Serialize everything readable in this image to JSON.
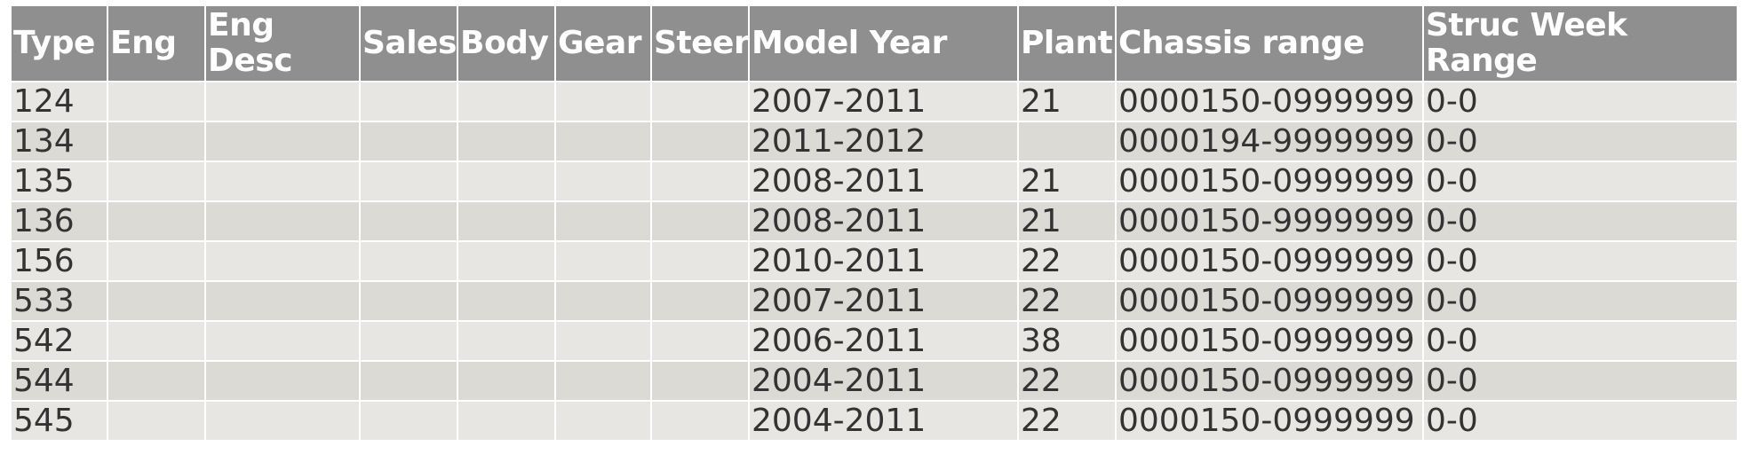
{
  "table": {
    "headers": [
      "Type",
      "Eng",
      "Eng Desc",
      "Sales",
      "Body",
      "Gear",
      "Steer",
      "Model Year",
      "Plant",
      "Chassis range",
      "Struc Week Range"
    ],
    "rows": [
      [
        "124",
        "",
        "",
        "",
        "",
        "",
        "",
        "2007-2011",
        "21",
        "0000150-0999999",
        "0-0"
      ],
      [
        "134",
        "",
        "",
        "",
        "",
        "",
        "",
        "2011-2012",
        "",
        "0000194-9999999",
        "0-0"
      ],
      [
        "135",
        "",
        "",
        "",
        "",
        "",
        "",
        "2008-2011",
        "21",
        "0000150-0999999",
        "0-0"
      ],
      [
        "136",
        "",
        "",
        "",
        "",
        "",
        "",
        "2008-2011",
        "21",
        "0000150-9999999",
        "0-0"
      ],
      [
        "156",
        "",
        "",
        "",
        "",
        "",
        "",
        "2010-2011",
        "22",
        "0000150-0999999",
        "0-0"
      ],
      [
        "533",
        "",
        "",
        "",
        "",
        "",
        "",
        "2007-2011",
        "22",
        "0000150-0999999",
        "0-0"
      ],
      [
        "542",
        "",
        "",
        "",
        "",
        "",
        "",
        "2006-2011",
        "38",
        "0000150-0999999",
        "0-0"
      ],
      [
        "544",
        "",
        "",
        "",
        "",
        "",
        "",
        "2004-2011",
        "22",
        "0000150-0999999",
        "0-0"
      ],
      [
        "545",
        "",
        "",
        "",
        "",
        "",
        "",
        "2004-2011",
        "22",
        "0000150-0999999",
        "0-0"
      ]
    ]
  }
}
